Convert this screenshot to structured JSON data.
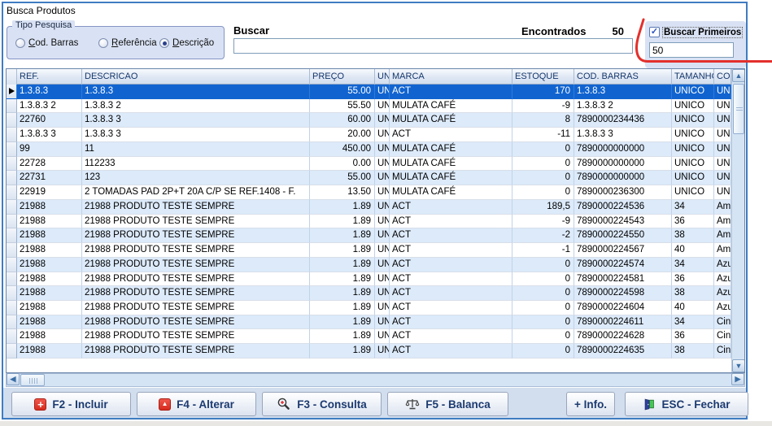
{
  "window": {
    "title": "Busca Produtos"
  },
  "search_panel": {
    "group_label": "Tipo Pesquisa",
    "radios": [
      {
        "label": "Cod. Barras",
        "selected": false
      },
      {
        "label": "Referência",
        "selected": false
      },
      {
        "label": "Descrição",
        "selected": true
      }
    ],
    "buscar_label": "Buscar",
    "buscar_value": "",
    "encontrados_label": "Encontrados",
    "encontrados_count": "50",
    "buscar_primeiros_label": "Buscar Primeiros",
    "buscar_primeiros_checked": true,
    "buscar_primeiros_value": "50"
  },
  "table": {
    "columns": [
      "REF.",
      "DESCRICAO",
      "PREÇO",
      "UN",
      "MARCA",
      "ESTOQUE",
      "COD. BARRAS",
      "TAMANHO",
      "CO"
    ],
    "selected_row_index": 0,
    "rows": [
      [
        "1.3.8.3",
        "1.3.8.3",
        "55.00",
        "UN",
        "ACT",
        "170",
        "1.3.8.3",
        "UNICO",
        "UN"
      ],
      [
        "1.3.8.3 2",
        "1.3.8.3 2",
        "55.50",
        "UN",
        "MULATA CAFÉ",
        "-9",
        "1.3.8.3 2",
        "UNICO",
        "UN"
      ],
      [
        "22760",
        "1.3.8.3 3",
        "60.00",
        "UN",
        "MULATA CAFÉ",
        "8",
        "7890000234436",
        "UNICO",
        "UN"
      ],
      [
        "1.3.8.3 3",
        "1.3.8.3 3",
        "20.00",
        "UN",
        "ACT",
        "-11",
        "1.3.8.3 3",
        "UNICO",
        "UN"
      ],
      [
        "99",
        "11",
        "450.00",
        "UN",
        "MULATA CAFÉ",
        "0",
        "7890000000000",
        "UNICO",
        "UN"
      ],
      [
        "22728",
        "112233",
        "0.00",
        "UN",
        "MULATA CAFÉ",
        "0",
        "7890000000000",
        "UNICO",
        "UN"
      ],
      [
        "22731",
        "123",
        "55.00",
        "UN",
        "MULATA CAFÉ",
        "0",
        "7890000000000",
        "UNICO",
        "UN"
      ],
      [
        "22919",
        "2 TOMADAS PAD 2P+T 20A C/P SE REF.1408 - F.",
        "13.50",
        "UN",
        "MULATA CAFÉ",
        "0",
        "7890000236300",
        "UNICO",
        "UN"
      ],
      [
        "21988",
        "21988 PRODUTO TESTE SEMPRE",
        "1.89",
        "UN",
        "ACT",
        "189,5",
        "7890000224536",
        "34",
        "Am"
      ],
      [
        "21988",
        "21988 PRODUTO TESTE SEMPRE",
        "1.89",
        "UN",
        "ACT",
        "-9",
        "7890000224543",
        "36",
        "Am"
      ],
      [
        "21988",
        "21988 PRODUTO TESTE SEMPRE",
        "1.89",
        "UN",
        "ACT",
        "-2",
        "7890000224550",
        "38",
        "Am"
      ],
      [
        "21988",
        "21988 PRODUTO TESTE SEMPRE",
        "1.89",
        "UN",
        "ACT",
        "-1",
        "7890000224567",
        "40",
        "Am"
      ],
      [
        "21988",
        "21988 PRODUTO TESTE SEMPRE",
        "1.89",
        "UN",
        "ACT",
        "0",
        "7890000224574",
        "34",
        "Azu"
      ],
      [
        "21988",
        "21988 PRODUTO TESTE SEMPRE",
        "1.89",
        "UN",
        "ACT",
        "0",
        "7890000224581",
        "36",
        "Azu"
      ],
      [
        "21988",
        "21988 PRODUTO TESTE SEMPRE",
        "1.89",
        "UN",
        "ACT",
        "0",
        "7890000224598",
        "38",
        "Azu"
      ],
      [
        "21988",
        "21988 PRODUTO TESTE SEMPRE",
        "1.89",
        "UN",
        "ACT",
        "0",
        "7890000224604",
        "40",
        "Azu"
      ],
      [
        "21988",
        "21988 PRODUTO TESTE SEMPRE",
        "1.89",
        "UN",
        "ACT",
        "0",
        "7890000224611",
        "34",
        "Cin"
      ],
      [
        "21988",
        "21988 PRODUTO TESTE SEMPRE",
        "1.89",
        "UN",
        "ACT",
        "0",
        "7890000224628",
        "36",
        "Cin"
      ],
      [
        "21988",
        "21988 PRODUTO TESTE SEMPRE",
        "1.89",
        "UN",
        "ACT",
        "0",
        "7890000224635",
        "38",
        "Cin"
      ]
    ]
  },
  "buttons": [
    {
      "label": "F2 - Incluir",
      "icon": "plus-red-icon"
    },
    {
      "label": "F4 - Alterar",
      "icon": "triangle-up-red-icon"
    },
    {
      "label": "F3 - Consulta",
      "icon": "magnifier-plus-icon"
    },
    {
      "label": "F5 - Balanca",
      "icon": "scale-icon"
    },
    {
      "label": "+ Info.",
      "icon": null
    },
    {
      "label": "ESC - Fechar",
      "icon": "door-exit-icon"
    }
  ],
  "colors": {
    "window_border": "#3f7cc1",
    "panel_blue": "#d9e2f4",
    "selection_blue": "#1164d0",
    "alt_row_blue": "#dceafa",
    "header_text": "#15366b",
    "button_text": "#1c3a70",
    "annotation_red": "#e3302c"
  }
}
